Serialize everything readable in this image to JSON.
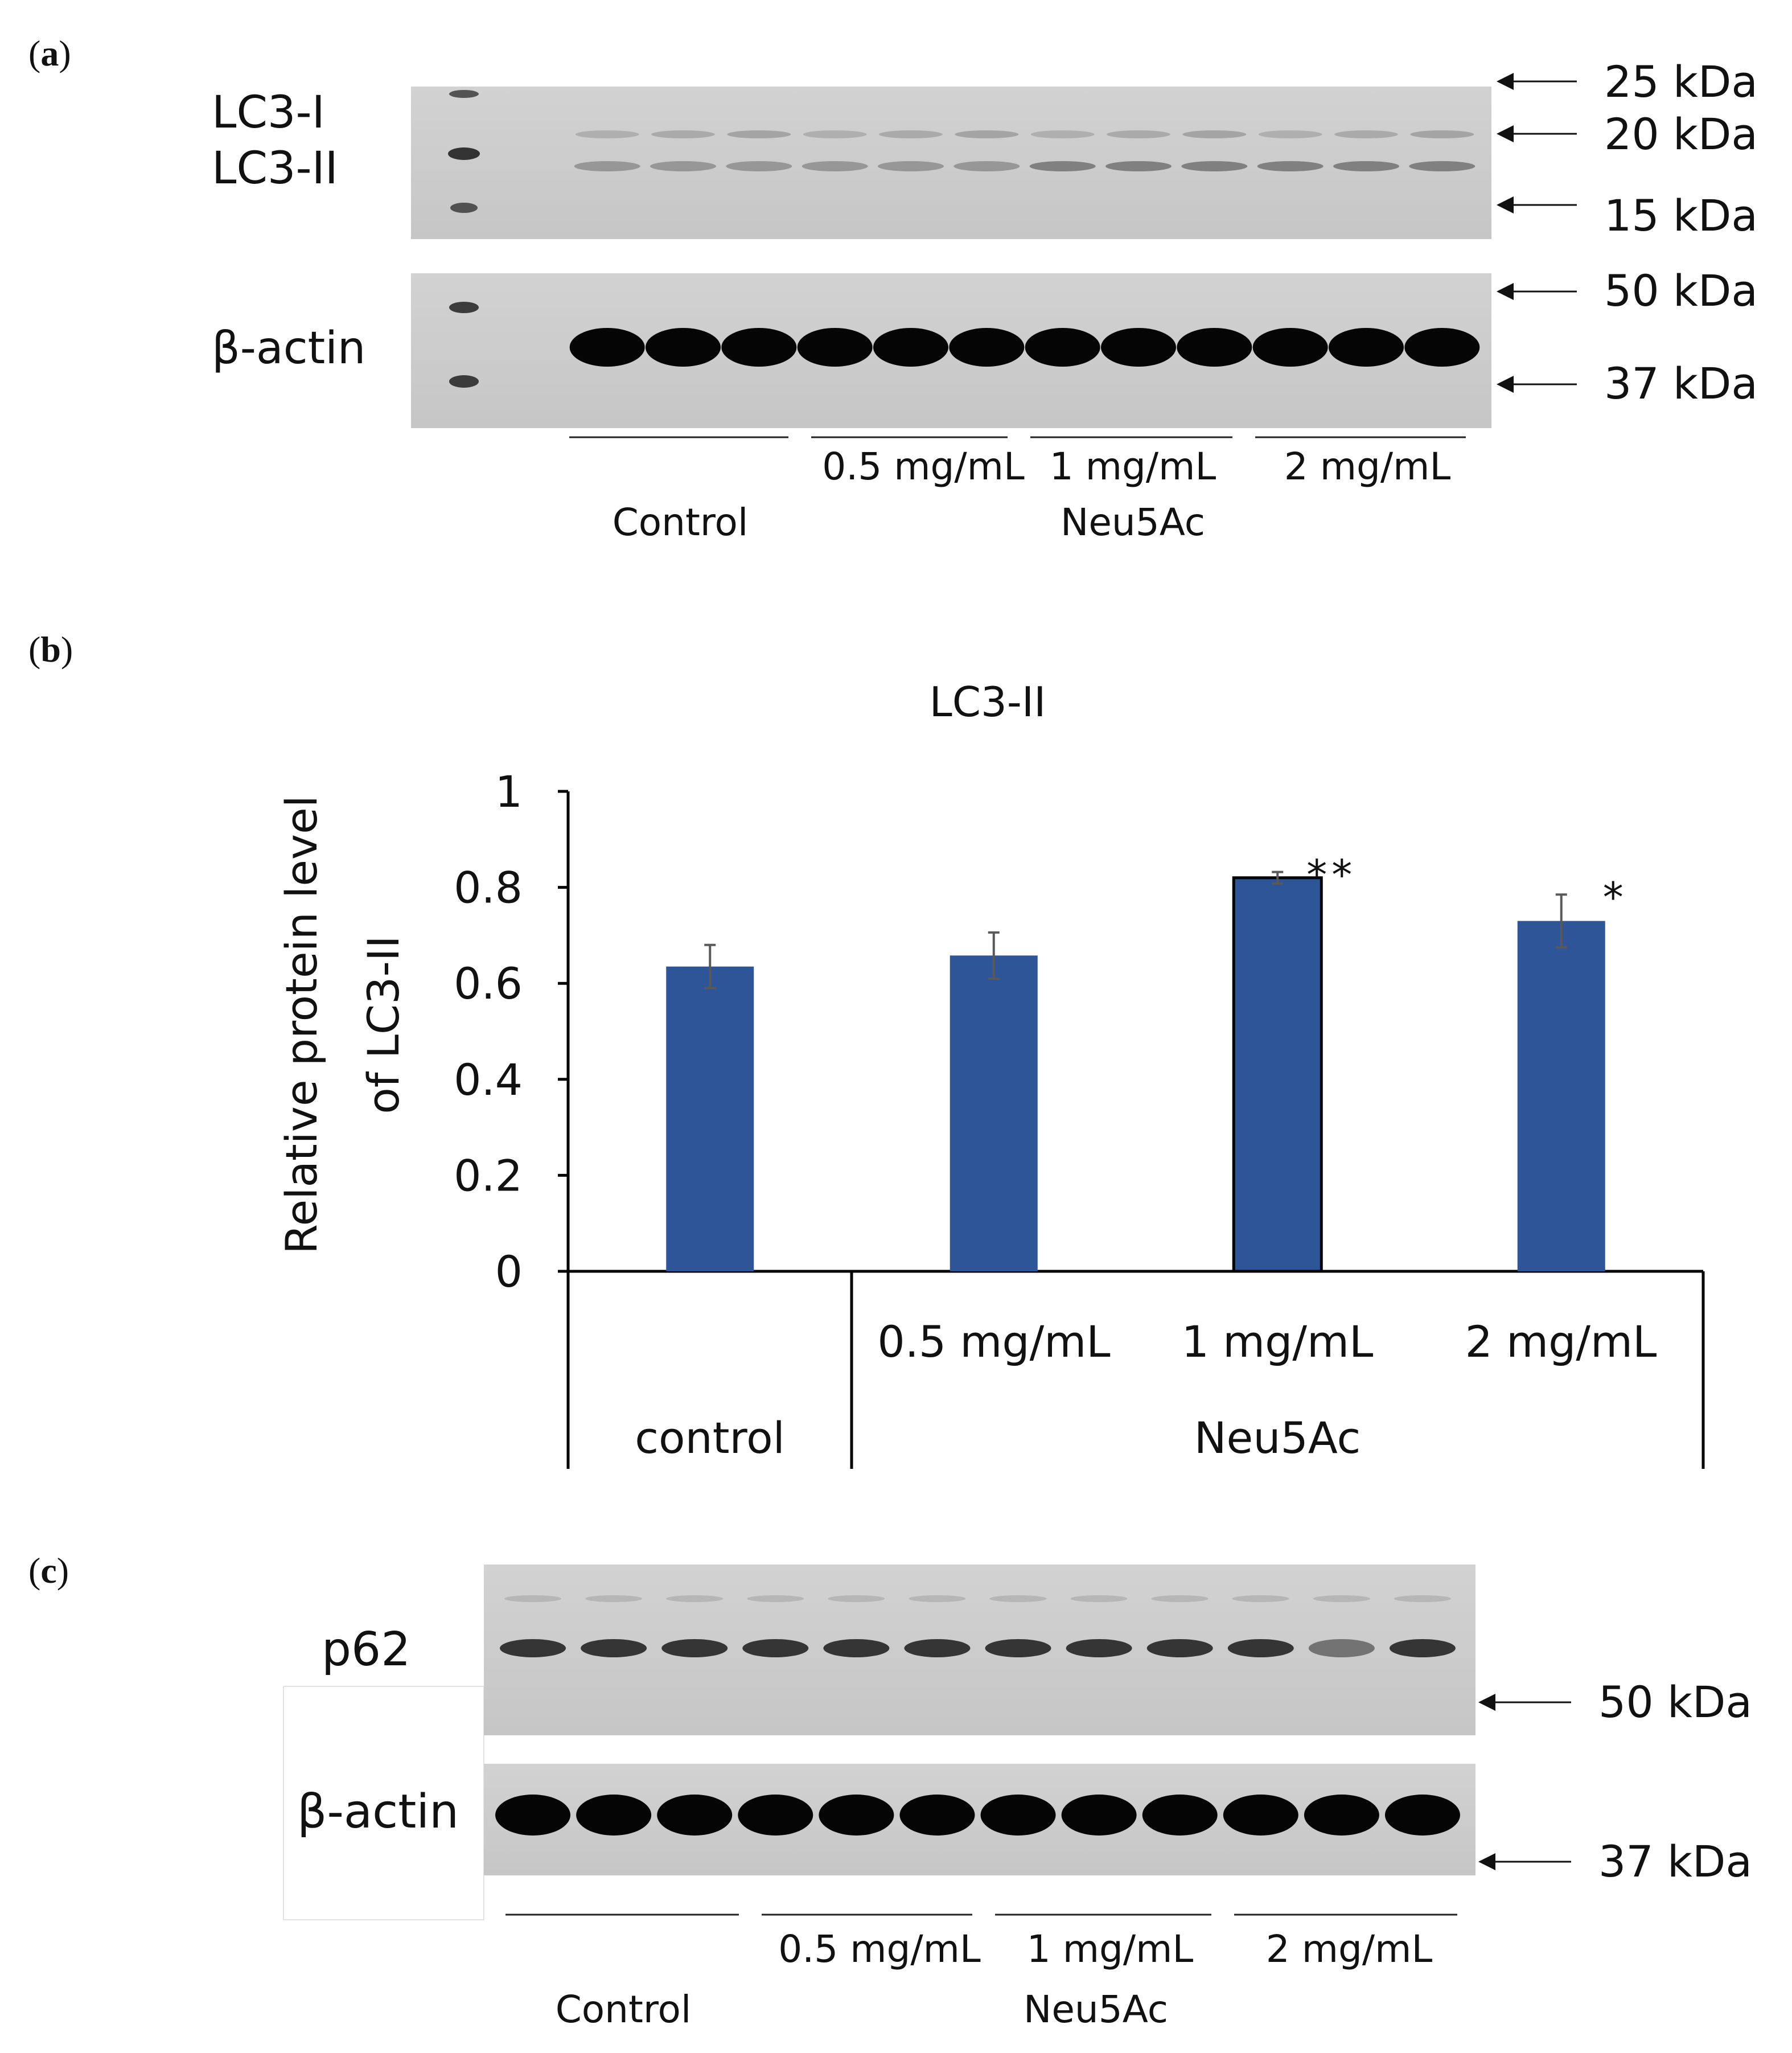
{
  "panel_a": {
    "label_parts": [
      "(",
      "a",
      ")"
    ],
    "blot_top_labels": [
      "LC3-I",
      "LC3-II"
    ],
    "blot_bottom_label": "β-actin",
    "markers": [
      "25 kDa",
      "20 kDa",
      "15 kDa",
      "50 kDa",
      "37 kDa"
    ],
    "group_labels": [
      "0.5 mg/mL",
      "1 mg/mL",
      "2 mg/mL"
    ],
    "control_label": "Control",
    "treatment_label": "Neu5Ac"
  },
  "panel_b": {
    "label_parts": [
      "(",
      "b",
      ")"
    ]
  },
  "panel_c": {
    "label_parts": [
      "(",
      "c",
      ")"
    ],
    "blot_top_label": "p62",
    "blot_bottom_label": "β-actin",
    "markers": [
      "50 kDa",
      "37 kDa"
    ],
    "group_labels": [
      "0.5 mg/mL",
      "1 mg/mL",
      "2 mg/mL"
    ],
    "control_label": "Control",
    "treatment_label": "Neu5Ac"
  },
  "chart_data": {
    "type": "bar",
    "title": "LC3-II",
    "ylabel_lines": [
      "Relative protein level",
      "of LC3-II"
    ],
    "ylim": [
      0,
      1
    ],
    "yticks": [
      0,
      0.2,
      0.4,
      0.6,
      0.8,
      1
    ],
    "ytick_labels": [
      "0",
      "0.2",
      "0.4",
      "0.6",
      "0.8",
      "1"
    ],
    "categories": [
      "control",
      "0.5 mg/mL",
      "1 mg/mL",
      "2 mg/mL"
    ],
    "values": [
      0.635,
      0.658,
      0.82,
      0.73
    ],
    "errors": [
      0.045,
      0.048,
      0.012,
      0.055
    ],
    "significance": [
      "",
      "",
      "**",
      "*"
    ],
    "group_labels": [
      "control",
      "Neu5Ac"
    ],
    "bar_color": "#2E5597",
    "error_color": "#595959"
  }
}
